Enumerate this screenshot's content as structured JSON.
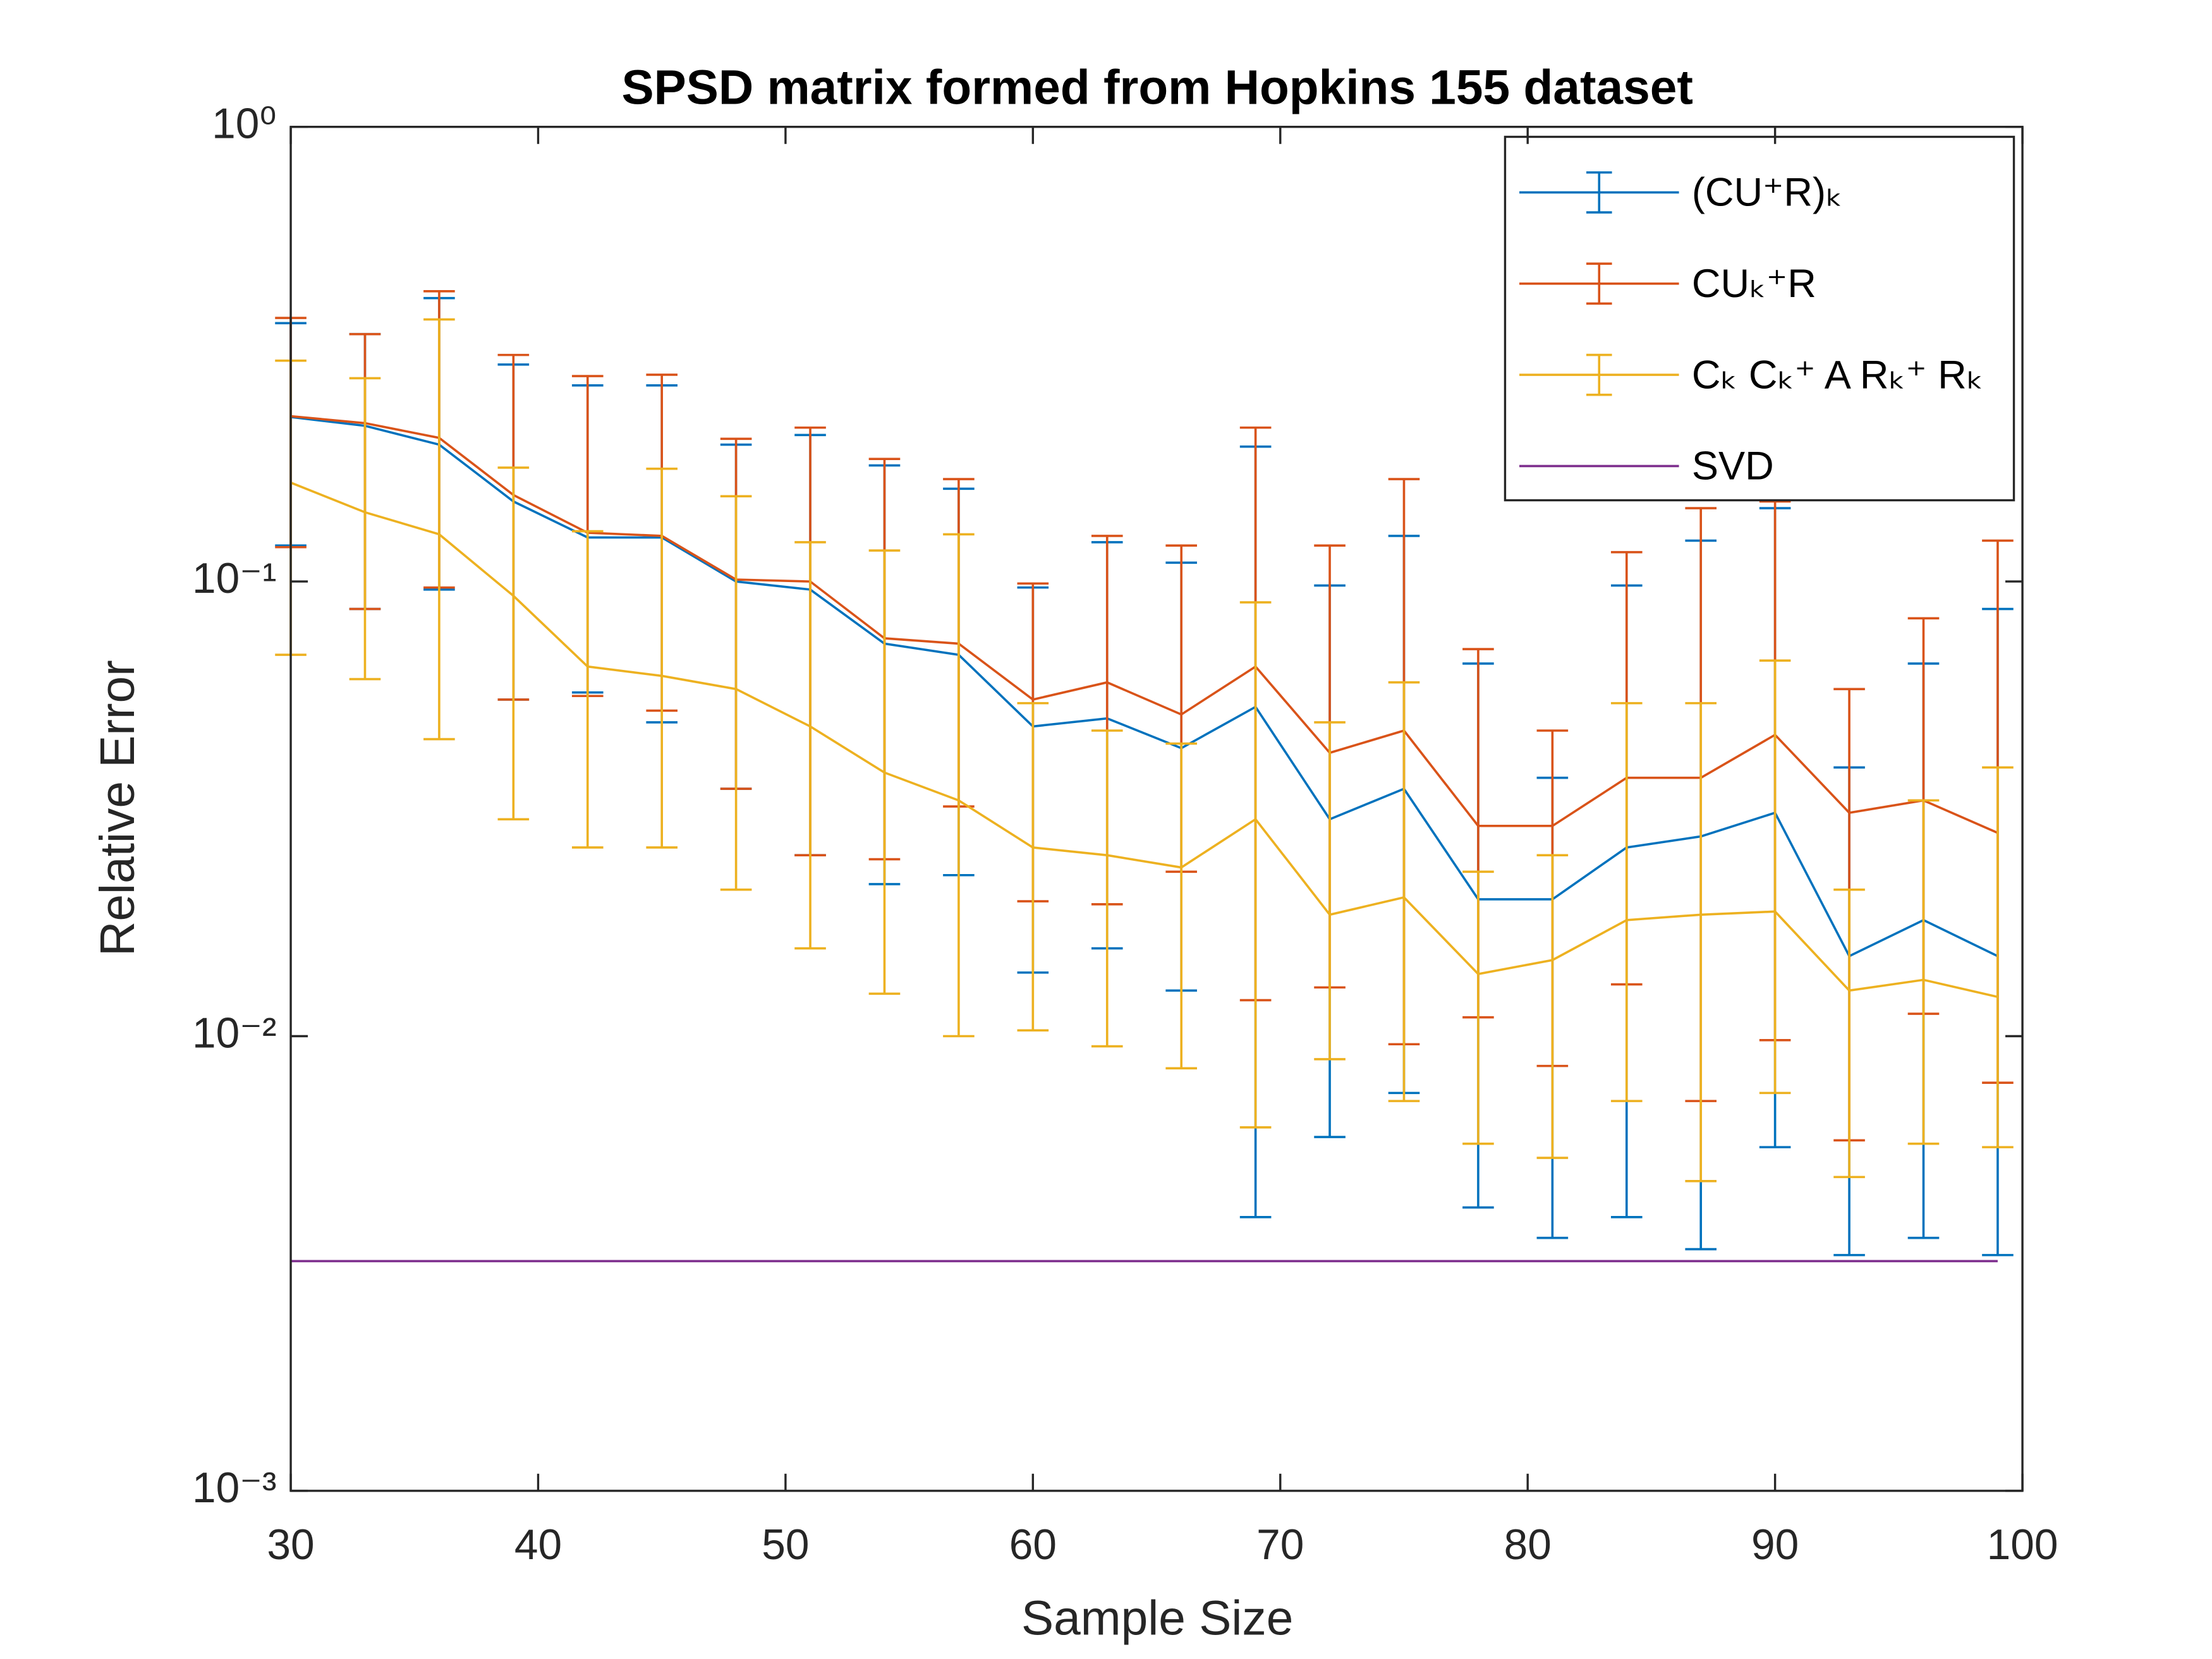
{
  "chart_data": {
    "type": "errorbar-line",
    "title": "SPSD matrix formed from Hopkins 155 dataset",
    "xlabel": "Sample Size",
    "ylabel": "Relative Error",
    "log_y": true,
    "legend": "upper right",
    "x": [
      30,
      33,
      36,
      39,
      42,
      45,
      48,
      51,
      54,
      57,
      60,
      63,
      66,
      69,
      72,
      75,
      78,
      81,
      84,
      87,
      90,
      93,
      96,
      99
    ],
    "xlim": [
      30,
      100
    ],
    "xticks": [
      30,
      40,
      50,
      60,
      70,
      80,
      90,
      100
    ],
    "ylim": [
      0.001,
      1
    ],
    "yticks": [
      {
        "value": 0.001,
        "label": "10⁻³"
      },
      {
        "value": 0.01,
        "label": "10⁻²"
      },
      {
        "value": 0.1,
        "label": "10⁻¹"
      },
      {
        "value": 1,
        "label": "10⁰"
      }
    ],
    "series": [
      {
        "name": "(CU⁺R)ₖ",
        "color": "#0072bd",
        "values": [
          0.23,
          0.22,
          0.2,
          0.15,
          0.125,
          0.125,
          0.1,
          0.096,
          0.073,
          0.069,
          0.048,
          0.05,
          0.043,
          0.053,
          0.03,
          0.035,
          0.02,
          0.02,
          0.026,
          0.0275,
          0.031,
          0.015,
          0.018,
          0.015
        ],
        "upper": [
          0.37,
          0.35,
          0.42,
          0.3,
          0.27,
          0.27,
          0.2,
          0.21,
          0.18,
          0.16,
          0.097,
          0.122,
          0.11,
          0.198,
          0.098,
          0.126,
          0.066,
          0.037,
          0.098,
          0.123,
          0.145,
          0.039,
          0.066,
          0.087
        ],
        "lower": [
          0.12,
          0.087,
          0.096,
          0.055,
          0.057,
          0.049,
          0.035,
          0.025,
          0.0216,
          0.0226,
          0.0138,
          0.0156,
          0.0126,
          0.004,
          0.006,
          0.0075,
          0.0042,
          0.0036,
          0.004,
          0.0034,
          0.0057,
          0.0033,
          0.0036,
          0.0033
        ]
      },
      {
        "name": "CUₖ⁺R",
        "color": "#d95319",
        "values": [
          0.231,
          0.223,
          0.207,
          0.155,
          0.128,
          0.126,
          0.101,
          0.1,
          0.075,
          0.073,
          0.055,
          0.06,
          0.051,
          0.065,
          0.042,
          0.047,
          0.029,
          0.029,
          0.037,
          0.037,
          0.046,
          0.031,
          0.033,
          0.028
        ],
        "upper": [
          0.38,
          0.35,
          0.435,
          0.315,
          0.283,
          0.285,
          0.206,
          0.218,
          0.186,
          0.168,
          0.099,
          0.126,
          0.12,
          0.218,
          0.12,
          0.168,
          0.071,
          0.047,
          0.116,
          0.145,
          0.15,
          0.058,
          0.083,
          0.123
        ],
        "lower": [
          0.119,
          0.087,
          0.097,
          0.055,
          0.056,
          0.052,
          0.035,
          0.025,
          0.0245,
          0.032,
          0.0198,
          0.0195,
          0.023,
          0.012,
          0.0128,
          0.0096,
          0.011,
          0.0086,
          0.013,
          0.0072,
          0.0098,
          0.0059,
          0.0112,
          0.0079
        ]
      },
      {
        "name": "Cₖ Cₖ⁺ A Rₖ⁺ Rₖ",
        "color": "#edb120",
        "values": [
          0.165,
          0.142,
          0.127,
          0.093,
          0.065,
          0.062,
          0.058,
          0.048,
          0.038,
          0.033,
          0.026,
          0.025,
          0.0235,
          0.03,
          0.0185,
          0.0202,
          0.0137,
          0.0147,
          0.018,
          0.0185,
          0.0188,
          0.0126,
          0.0133,
          0.0122
        ],
        "upper": [
          0.306,
          0.28,
          0.377,
          0.178,
          0.129,
          0.177,
          0.154,
          0.122,
          0.117,
          0.127,
          0.054,
          0.047,
          0.044,
          0.09,
          0.049,
          0.06,
          0.023,
          0.025,
          0.054,
          0.054,
          0.067,
          0.021,
          0.033,
          0.039
        ],
        "lower": [
          0.069,
          0.061,
          0.045,
          0.03,
          0.026,
          0.026,
          0.021,
          0.0156,
          0.0124,
          0.01,
          0.0103,
          0.0095,
          0.0085,
          0.0063,
          0.0089,
          0.0072,
          0.0058,
          0.0054,
          0.0072,
          0.0048,
          0.0075,
          0.0049,
          0.0058,
          0.0057
        ]
      },
      {
        "name": "SVD",
        "color": "#7e2f8e",
        "values": [
          0.0032,
          0.0032,
          0.0032,
          0.0032,
          0.0032,
          0.0032,
          0.0032,
          0.0032,
          0.0032,
          0.0032,
          0.0032,
          0.0032,
          0.0032,
          0.0032,
          0.0032,
          0.0032,
          0.0032,
          0.0032,
          0.0032,
          0.0032,
          0.0032,
          0.0032,
          0.0032,
          0.0032
        ]
      }
    ]
  }
}
